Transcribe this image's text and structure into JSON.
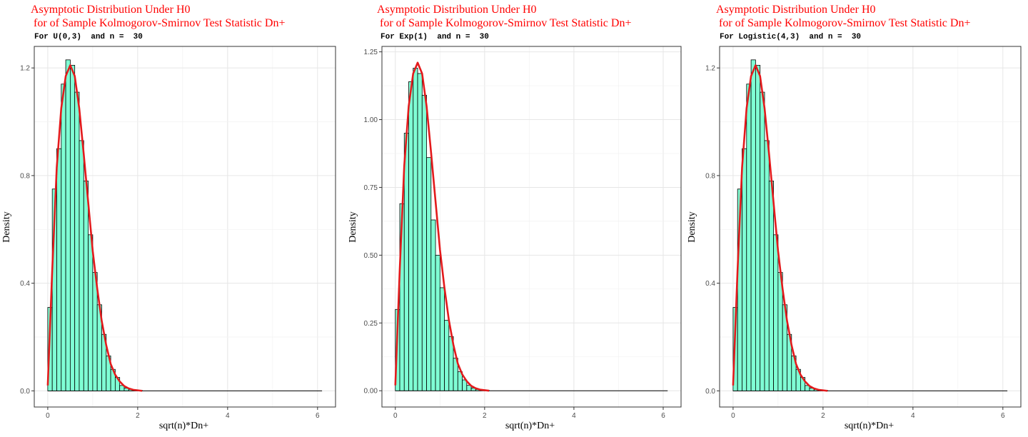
{
  "chart_data": [
    {
      "type": "histogram",
      "title": [
        "Asymptotic Distribution Under H0",
        " for of Sample Kolmogorov-Smirnov Test Statistic Dn+"
      ],
      "subtitle": "For U(0,3)  and n =  30",
      "xlabel": "sqrt(n)*Dn+",
      "ylabel": "Density",
      "xlim": [
        -0.3,
        6.4
      ],
      "ylim": [
        -0.06,
        1.28
      ],
      "xticks": [
        0,
        2,
        4,
        6
      ],
      "yticks": [
        0.0,
        0.4,
        0.8,
        1.2
      ],
      "ytick_labels": [
        "0.0",
        "0.4",
        "0.8",
        "1.2"
      ],
      "grid": true,
      "bin_width": 0.1,
      "bars": [
        0.31,
        0.75,
        0.9,
        1.14,
        1.23,
        1.21,
        1.11,
        0.93,
        0.78,
        0.58,
        0.44,
        0.32,
        0.21,
        0.13,
        0.08,
        0.05,
        0.02,
        0.01,
        0.005,
        0.004,
        0.002
      ],
      "density_curve": {
        "x": [
          0,
          0.1,
          0.2,
          0.3,
          0.4,
          0.5,
          0.6,
          0.7,
          0.8,
          0.9,
          1.0,
          1.1,
          1.2,
          1.3,
          1.4,
          1.5,
          1.6,
          1.7,
          1.8,
          1.9,
          2.0,
          2.1
        ],
        "y": [
          0.02,
          0.45,
          0.83,
          1.05,
          1.17,
          1.21,
          1.17,
          1.05,
          0.88,
          0.7,
          0.52,
          0.38,
          0.26,
          0.17,
          0.1,
          0.06,
          0.035,
          0.018,
          0.009,
          0.004,
          0.002,
          0.0
        ]
      },
      "colors": {
        "fill": "#7fffd4",
        "curve": "#e31a1c",
        "title": "#ff0000"
      }
    },
    {
      "type": "histogram",
      "title": [
        "Asymptotic Distribution Under H0",
        " for of Sample Kolmogorov-Smirnov Test Statistic Dn+"
      ],
      "subtitle": "For Exp(1)  and n =  30",
      "xlabel": "sqrt(n)*Dn+",
      "ylabel": "Density",
      "xlim": [
        -0.3,
        6.4
      ],
      "ylim": [
        -0.06,
        1.27
      ],
      "xticks": [
        0,
        2,
        4,
        6
      ],
      "yticks": [
        0.0,
        0.25,
        0.5,
        0.75,
        1.0,
        1.25
      ],
      "ytick_labels": [
        "0.00",
        "0.25",
        "0.50",
        "0.75",
        "1.00",
        "1.25"
      ],
      "grid": true,
      "bin_width": 0.1,
      "bars": [
        0.3,
        0.69,
        0.95,
        1.14,
        1.19,
        1.17,
        1.09,
        0.86,
        0.63,
        0.5,
        0.38,
        0.26,
        0.2,
        0.12,
        0.07,
        0.04,
        0.02,
        0.01,
        0.005,
        0.003,
        0.002
      ],
      "density_curve": {
        "x": [
          0,
          0.1,
          0.2,
          0.3,
          0.4,
          0.5,
          0.6,
          0.7,
          0.8,
          0.9,
          1.0,
          1.1,
          1.2,
          1.3,
          1.4,
          1.5,
          1.6,
          1.7,
          1.8,
          1.9,
          2.0,
          2.1
        ],
        "y": [
          0.02,
          0.45,
          0.83,
          1.05,
          1.17,
          1.21,
          1.17,
          1.05,
          0.88,
          0.7,
          0.52,
          0.38,
          0.26,
          0.17,
          0.1,
          0.06,
          0.035,
          0.018,
          0.009,
          0.004,
          0.002,
          0.0
        ]
      },
      "colors": {
        "fill": "#7fffd4",
        "curve": "#e31a1c",
        "title": "#ff0000"
      }
    },
    {
      "type": "histogram",
      "title": [
        "Asymptotic Distribution Under H0",
        " for of Sample Kolmogorov-Smirnov Test Statistic Dn+"
      ],
      "subtitle": "For Logistic(4,3)  and n =  30",
      "xlabel": "sqrt(n)*Dn+",
      "ylabel": "Density",
      "xlim": [
        -0.3,
        6.4
      ],
      "ylim": [
        -0.06,
        1.28
      ],
      "xticks": [
        0,
        2,
        4,
        6
      ],
      "yticks": [
        0.0,
        0.4,
        0.8,
        1.2
      ],
      "ytick_labels": [
        "0.0",
        "0.4",
        "0.8",
        "1.2"
      ],
      "grid": true,
      "bin_width": 0.1,
      "bars": [
        0.31,
        0.75,
        0.9,
        1.14,
        1.23,
        1.21,
        1.11,
        0.93,
        0.78,
        0.58,
        0.44,
        0.32,
        0.21,
        0.13,
        0.08,
        0.05,
        0.02,
        0.01,
        0.005,
        0.004,
        0.002
      ],
      "density_curve": {
        "x": [
          0,
          0.1,
          0.2,
          0.3,
          0.4,
          0.5,
          0.6,
          0.7,
          0.8,
          0.9,
          1.0,
          1.1,
          1.2,
          1.3,
          1.4,
          1.5,
          1.6,
          1.7,
          1.8,
          1.9,
          2.0,
          2.1
        ],
        "y": [
          0.02,
          0.45,
          0.83,
          1.05,
          1.17,
          1.21,
          1.17,
          1.05,
          0.88,
          0.7,
          0.52,
          0.38,
          0.26,
          0.17,
          0.1,
          0.06,
          0.035,
          0.018,
          0.009,
          0.004,
          0.002,
          0.0
        ]
      },
      "colors": {
        "fill": "#7fffd4",
        "curve": "#e31a1c",
        "title": "#ff0000"
      }
    }
  ]
}
